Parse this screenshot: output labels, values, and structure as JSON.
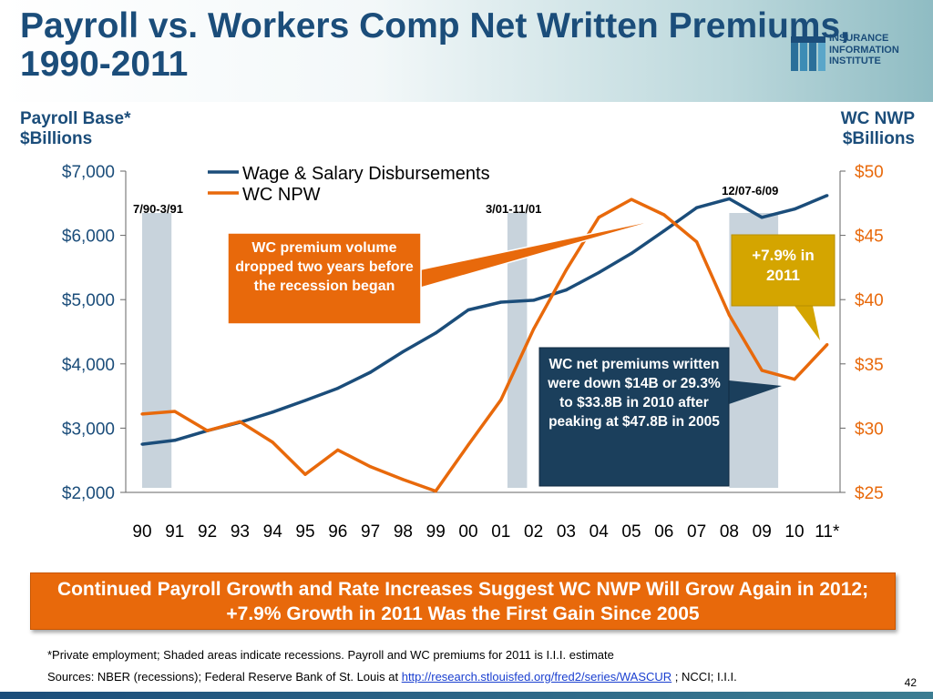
{
  "title": "Payroll vs. Workers Comp Net Written Premiums, 1990-2011",
  "logo_lines": [
    "INSURANCE",
    "INFORMATION",
    "INSTITUTE"
  ],
  "left_axis_heading": [
    "Payroll Base*",
    "$Billions"
  ],
  "right_axis_heading": [
    "WC NWP",
    "$Billions"
  ],
  "banner": "Continued Payroll Growth and Rate Increases Suggest WC NWP Will Grow Again in 2012;  +7.9% Growth in 2011 Was the First Gain Since 2005",
  "footnote": "*Private employment;  Shaded areas indicate recessions. Payroll and WC premiums for 2011 is I.I.I. estimate",
  "sources_prefix": "Sources: NBER (recessions); Federal Reserve Bank of St. Louis at ",
  "sources_link": "http://research.stlouisfed.org/fred2/series/WASCUR",
  "sources_suffix": " ; NCCI; I.I.I.",
  "page_number": "42",
  "colors": {
    "payroll": "#1b4d7a",
    "wc": "#e8690b",
    "recession": "#c8d3dc",
    "callout_orange": "#e8690b",
    "callout_navy": "#1b3f5c",
    "callout_gold": "#d4a500"
  },
  "chart_data": {
    "type": "line",
    "categories": [
      "90",
      "91",
      "92",
      "93",
      "94",
      "95",
      "96",
      "97",
      "98",
      "99",
      "00",
      "01",
      "02",
      "03",
      "04",
      "05",
      "06",
      "07",
      "08",
      "09",
      "10",
      "11*"
    ],
    "series": [
      {
        "name": "Wage & Salary Disbursements",
        "axis": "left",
        "values": [
          2750,
          2810,
          2960,
          3090,
          3250,
          3430,
          3620,
          3870,
          4190,
          4480,
          4840,
          4960,
          4990,
          5150,
          5420,
          5720,
          6070,
          6430,
          6570,
          6280,
          6410,
          6620
        ]
      },
      {
        "name": "WC NPW",
        "axis": "right",
        "values": [
          31.1,
          31.3,
          29.8,
          30.5,
          28.9,
          26.4,
          28.3,
          27.0,
          26.0,
          25.1,
          28.7,
          32.2,
          37.7,
          42.3,
          46.4,
          47.8,
          46.6,
          44.5,
          38.8,
          34.5,
          33.8,
          36.5
        ]
      }
    ],
    "left_axis": {
      "min": 2000,
      "max": 7000,
      "ticks": [
        "$7,000",
        "$6,000",
        "$5,000",
        "$4,000",
        "$3,000",
        "$2,000"
      ],
      "tick_values": [
        7000,
        6000,
        5000,
        4000,
        3000,
        2000
      ]
    },
    "right_axis": {
      "min": 25,
      "max": 50,
      "ticks": [
        "$50",
        "$45",
        "$40",
        "$35",
        "$30",
        "$25"
      ],
      "tick_values": [
        50,
        45,
        40,
        35,
        30,
        25
      ]
    },
    "recessions": [
      {
        "label": "7/90-3/91",
        "start": 0,
        "end": 0.9
      },
      {
        "label": "3/01-11/01",
        "start": 11.2,
        "end": 11.8
      },
      {
        "label": "12/07-6/09",
        "start": 18.0,
        "end": 19.5
      }
    ],
    "callouts": [
      "WC premium volume dropped two years before the recession began",
      "+7.9% in 2011",
      "WC net premiums written were down $14B or 29.3% to $33.8B in 2010 after peaking at $47.8B in 2005"
    ],
    "legend_placement": "top-left",
    "grid": false
  }
}
